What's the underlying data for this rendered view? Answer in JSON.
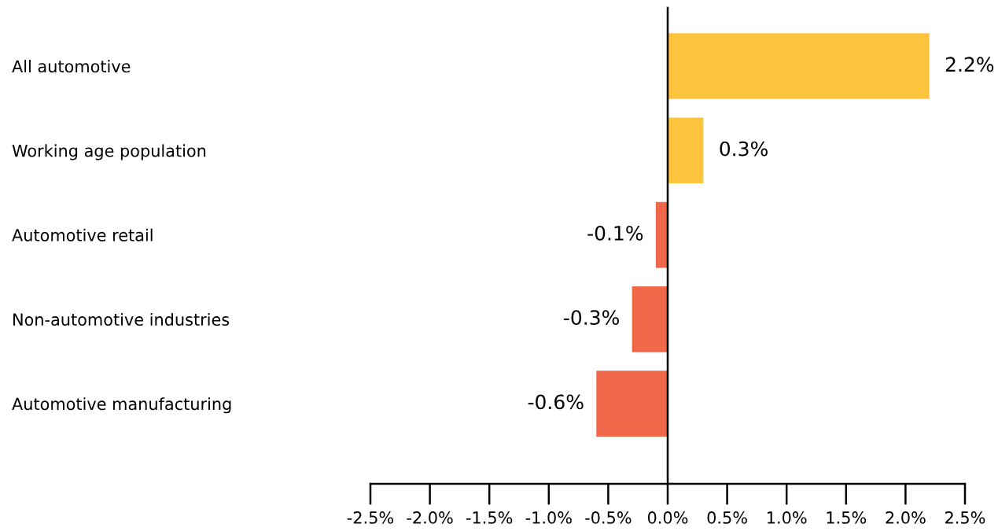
{
  "chart_data": {
    "type": "bar",
    "orientation": "horizontal",
    "categories": [
      "All automotive",
      "Working age population",
      "Automotive retail",
      "Non-automotive industries",
      "Automotive manufacturing"
    ],
    "values": [
      2.2,
      0.3,
      -0.1,
      -0.3,
      -0.6
    ],
    "colors": [
      "#fec43e",
      "#fec43e",
      "#f0674a",
      "#f0674a",
      "#f0674a"
    ],
    "value_labels": [
      "2.2%",
      "0.3%",
      "-0.1%",
      "-0.3%",
      "-0.6%"
    ],
    "xlim": [
      -2.5,
      2.5
    ],
    "xticks": [
      {
        "value": -2.5,
        "label": "-2.5%"
      },
      {
        "value": -2.0,
        "label": "-2.0%"
      },
      {
        "value": -1.5,
        "label": "-1.5%"
      },
      {
        "value": -1.0,
        "label": "-1.0%"
      },
      {
        "value": -0.5,
        "label": "-0.5%"
      },
      {
        "value": 0.0,
        "label": "0.0%"
      },
      {
        "value": 0.5,
        "label": "0.5%"
      },
      {
        "value": 1.0,
        "label": "1.0%"
      },
      {
        "value": 1.5,
        "label": "1.5%"
      },
      {
        "value": 2.0,
        "label": "2.0%"
      },
      {
        "value": 2.5,
        "label": "2.5%"
      }
    ]
  }
}
